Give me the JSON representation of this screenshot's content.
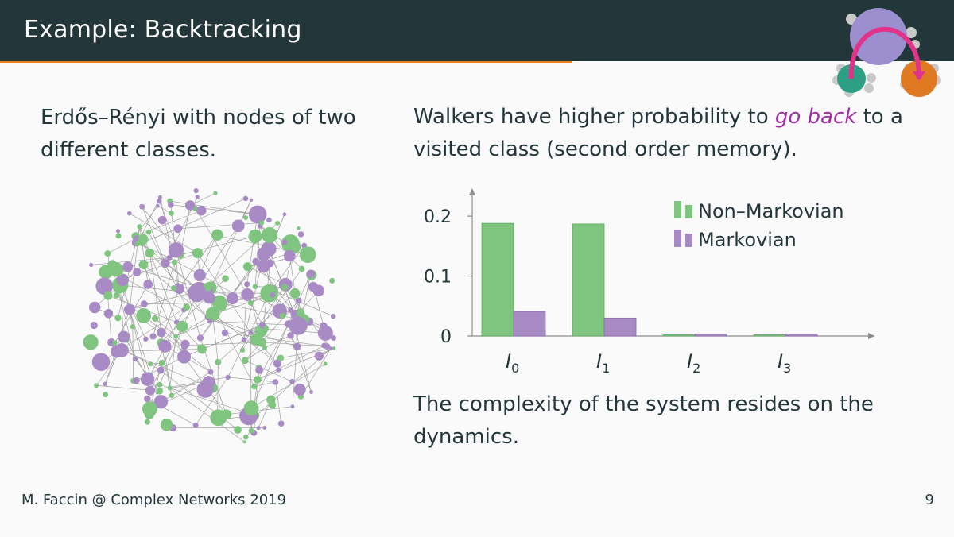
{
  "header": {
    "title": "Example: Backtracking"
  },
  "left": {
    "text": "Erdős–Rényi with nodes of two different classes."
  },
  "right": {
    "text_before": "Walkers have higher probability to ",
    "text_emph": "go back",
    "text_after": " to a visited class (second order memory)."
  },
  "bottom": {
    "text": "The complexity of the system resides on the dynamics."
  },
  "footer": {
    "author": "M. Faccin @ Complex Networks 2019",
    "page": "9"
  },
  "colors": {
    "header_bg": "#23373b",
    "progress": "#eb811b",
    "green": "#7fc47f",
    "purple": "#a88bc4",
    "emph": "#a22ca8"
  },
  "icons": {
    "logo": "network-logo-icon"
  },
  "chart_data": {
    "type": "bar",
    "categories": [
      "I0",
      "I1",
      "I2",
      "I3"
    ],
    "tick_labels": [
      {
        "base": "I",
        "sub": "0"
      },
      {
        "base": "I",
        "sub": "1"
      },
      {
        "base": "I",
        "sub": "2"
      },
      {
        "base": "I",
        "sub": "3"
      }
    ],
    "series": [
      {
        "name": "Non–Markovian",
        "color": "#7fc47f",
        "values": [
          0.188,
          0.187,
          0.002,
          0.002
        ]
      },
      {
        "name": "Markovian",
        "color": "#a88bc4",
        "values": [
          0.041,
          0.03,
          0.003,
          0.003
        ]
      }
    ],
    "ylim": [
      0,
      0.22
    ],
    "yticks": [
      0,
      0.1,
      0.2
    ],
    "ytick_labels": [
      "0",
      "0.1",
      "0.2"
    ],
    "legend": "top-right",
    "grid": false
  }
}
